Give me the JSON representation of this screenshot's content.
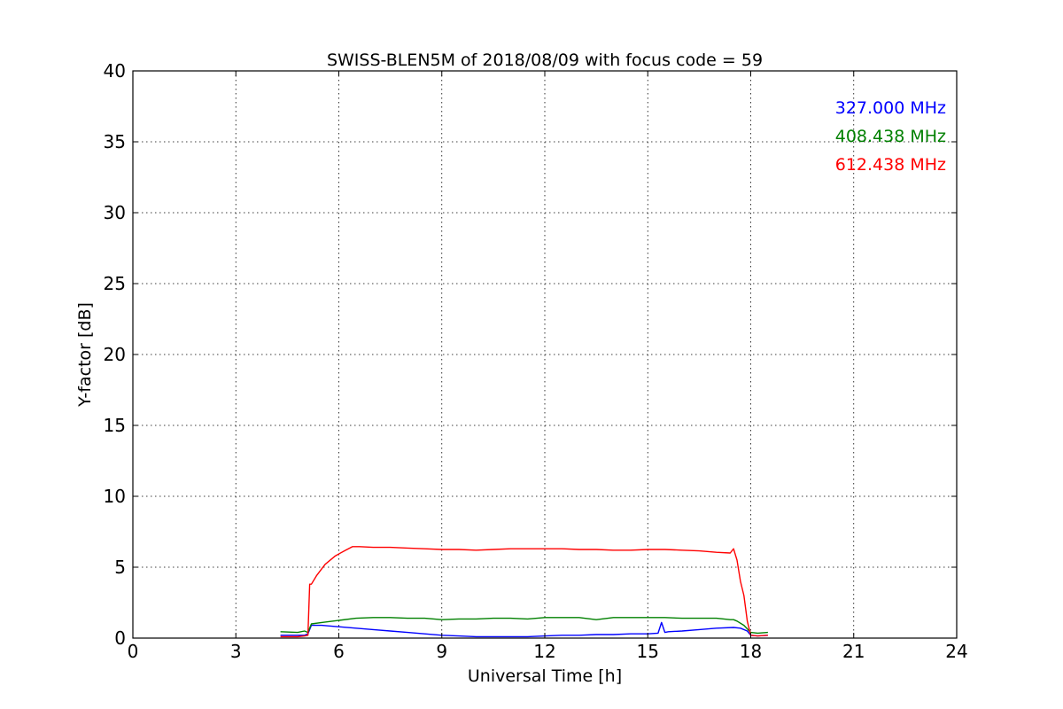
{
  "chart_data": {
    "type": "line",
    "title": "SWISS-BLEN5M of 2018/08/09 with focus code = 59",
    "xlabel": "Universal Time [h]",
    "ylabel": "Y-factor [dB]",
    "xlim": [
      0,
      24
    ],
    "ylim": [
      0,
      40
    ],
    "xticks": [
      0,
      3,
      6,
      9,
      12,
      15,
      18,
      21,
      24
    ],
    "yticks": [
      0,
      5,
      10,
      15,
      20,
      25,
      30,
      35,
      40
    ],
    "xtick_labels": [
      "0",
      "3",
      "6",
      "9",
      "12",
      "15",
      "18",
      "21",
      "24"
    ],
    "ytick_labels": [
      "0",
      "5",
      "10",
      "15",
      "20",
      "25",
      "30",
      "35",
      "40"
    ],
    "grid": true,
    "legend_position": "top-right",
    "series": [
      {
        "name": "327.000 MHz",
        "color": "#0000ff",
        "x": [
          4.3,
          5.0,
          5.1,
          5.2,
          5.5,
          6.0,
          6.5,
          7.0,
          7.5,
          8.0,
          8.5,
          9.0,
          9.5,
          10.0,
          10.5,
          11.0,
          11.5,
          12.0,
          12.5,
          13.0,
          13.5,
          14.0,
          14.5,
          15.0,
          15.3,
          15.4,
          15.5,
          15.6,
          16.0,
          16.5,
          17.0,
          17.5,
          17.7,
          17.9,
          18.0,
          18.2,
          18.5
        ],
        "y": [
          0.2,
          0.2,
          0.3,
          0.9,
          0.9,
          0.8,
          0.7,
          0.6,
          0.5,
          0.4,
          0.3,
          0.2,
          0.15,
          0.1,
          0.1,
          0.1,
          0.1,
          0.15,
          0.2,
          0.2,
          0.25,
          0.25,
          0.3,
          0.3,
          0.35,
          1.1,
          0.4,
          0.45,
          0.5,
          0.6,
          0.7,
          0.75,
          0.7,
          0.5,
          0.2,
          0.15,
          0.2
        ]
      },
      {
        "name": "408.438 MHz",
        "color": "#008000",
        "x": [
          4.3,
          4.8,
          5.0,
          5.1,
          5.2,
          5.5,
          6.0,
          6.5,
          7.0,
          7.5,
          8.0,
          8.5,
          9.0,
          9.5,
          10.0,
          10.5,
          11.0,
          11.5,
          12.0,
          12.5,
          13.0,
          13.5,
          14.0,
          14.5,
          15.0,
          15.5,
          16.0,
          16.5,
          17.0,
          17.4,
          17.5,
          17.6,
          17.8,
          18.0,
          18.2,
          18.5
        ],
        "y": [
          0.45,
          0.4,
          0.5,
          0.4,
          1.0,
          1.1,
          1.25,
          1.4,
          1.45,
          1.45,
          1.4,
          1.4,
          1.3,
          1.35,
          1.35,
          1.4,
          1.4,
          1.35,
          1.45,
          1.45,
          1.45,
          1.3,
          1.45,
          1.45,
          1.45,
          1.45,
          1.4,
          1.4,
          1.4,
          1.3,
          1.3,
          1.2,
          0.9,
          0.4,
          0.35,
          0.4
        ]
      },
      {
        "name": "612.438 MHz",
        "color": "#ff0000",
        "x": [
          4.3,
          4.8,
          5.0,
          5.1,
          5.15,
          5.2,
          5.35,
          5.6,
          5.9,
          6.2,
          6.4,
          6.6,
          7.0,
          7.5,
          8.0,
          8.5,
          9.0,
          9.5,
          10.0,
          10.5,
          11.0,
          11.5,
          12.0,
          12.5,
          13.0,
          13.5,
          14.0,
          14.5,
          15.0,
          15.5,
          16.0,
          16.5,
          17.0,
          17.4,
          17.5,
          17.6,
          17.7,
          17.8,
          17.9,
          18.0,
          18.2,
          18.5
        ],
        "y": [
          0.1,
          0.1,
          0.15,
          0.2,
          3.8,
          3.8,
          4.4,
          5.2,
          5.8,
          6.2,
          6.45,
          6.45,
          6.4,
          6.4,
          6.35,
          6.3,
          6.25,
          6.25,
          6.2,
          6.25,
          6.3,
          6.3,
          6.3,
          6.3,
          6.25,
          6.25,
          6.2,
          6.2,
          6.25,
          6.25,
          6.2,
          6.15,
          6.05,
          6.0,
          6.3,
          5.5,
          4.0,
          3.0,
          1.2,
          0.2,
          0.15,
          0.2
        ]
      }
    ]
  }
}
